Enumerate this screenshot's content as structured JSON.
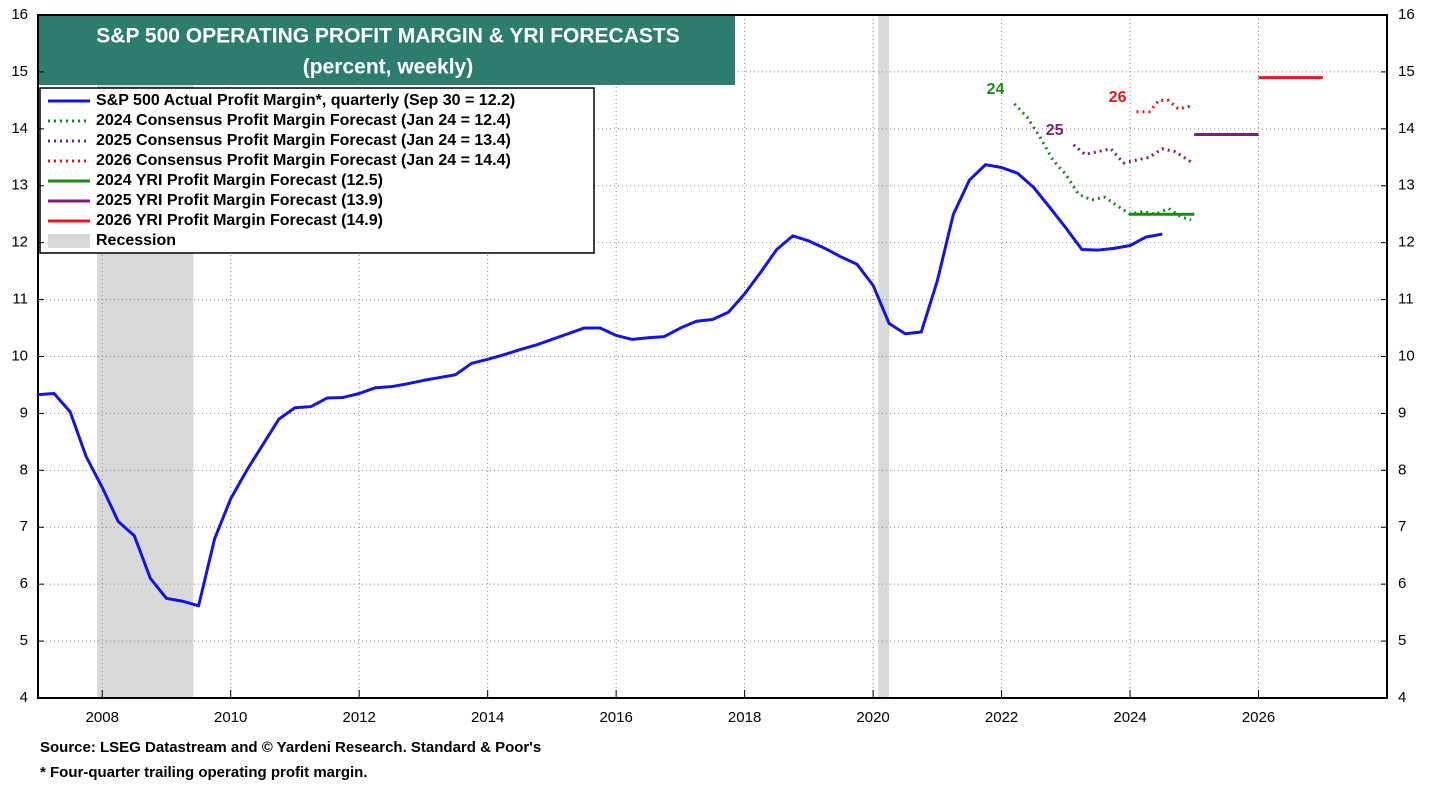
{
  "chart_data": {
    "type": "line",
    "title": "S&P 500 OPERATING PROFIT MARGIN & YRI FORECASTS",
    "subtitle": "(percent, weekly)",
    "xlim": [
      2007,
      2028
    ],
    "xticks": [
      2008,
      2010,
      2012,
      2014,
      2016,
      2018,
      2020,
      2022,
      2024,
      2026
    ],
    "ylim": [
      4,
      16
    ],
    "yticks": [
      4,
      5,
      6,
      7,
      8,
      9,
      10,
      11,
      12,
      13,
      14,
      15,
      16
    ],
    "y2lim": [
      4,
      16
    ],
    "y2ticks": [
      4,
      5,
      6,
      7,
      8,
      9,
      10,
      11,
      12,
      13,
      14,
      15,
      16
    ],
    "grid": true,
    "legend": "upper left",
    "series": [
      {
        "name": "S&P 500 Actual Profit Margin*, quarterly (Sep 30 = 12.2)",
        "color": "#1414e6",
        "style": "solid",
        "x": [
          2007,
          2007.25,
          2007.5,
          2007.75,
          2008,
          2008.25,
          2008.5,
          2008.75,
          2009,
          2009.25,
          2009.5,
          2009.75,
          2010,
          2010.25,
          2010.5,
          2010.75,
          2011,
          2011.25,
          2011.5,
          2011.75,
          2012,
          2012.25,
          2012.5,
          2012.75,
          2013,
          2013.25,
          2013.5,
          2013.75,
          2014,
          2014.25,
          2014.5,
          2014.75,
          2015,
          2015.25,
          2015.5,
          2015.75,
          2016,
          2016.25,
          2016.5,
          2016.75,
          2017,
          2017.25,
          2017.5,
          2017.75,
          2018,
          2018.25,
          2018.5,
          2018.75,
          2019,
          2019.25,
          2019.5,
          2019.75,
          2020,
          2020.25,
          2020.5,
          2020.75,
          2021,
          2021.25,
          2021.5,
          2021.75,
          2022,
          2022.25,
          2022.5,
          2022.75,
          2023,
          2023.25,
          2023.5,
          2023.75,
          2024,
          2024.25,
          2024.5
        ],
        "values": [
          9.33,
          9.35,
          9.03,
          8.24,
          7.7,
          7.1,
          6.85,
          6.1,
          5.75,
          5.7,
          5.62,
          6.8,
          7.5,
          8.0,
          8.45,
          8.9,
          9.1,
          9.12,
          9.27,
          9.28,
          9.35,
          9.45,
          9.47,
          9.52,
          9.58,
          9.63,
          9.68,
          9.88,
          9.95,
          10.03,
          10.12,
          10.2,
          10.3,
          10.4,
          10.5,
          10.5,
          10.37,
          10.3,
          10.33,
          10.35,
          10.5,
          10.62,
          10.65,
          10.78,
          11.1,
          11.48,
          11.88,
          12.12,
          12.03,
          11.9,
          11.75,
          11.62,
          11.25,
          10.58,
          10.4,
          10.43,
          11.33,
          12.5,
          13.1,
          13.37,
          13.32,
          13.22,
          12.97,
          12.62,
          12.26,
          11.88,
          11.87,
          11.9,
          11.95,
          12.1,
          12.15
        ]
      },
      {
        "name": "2024 Consensus Profit Margin Forecast (Jan 24 = 12.4)",
        "color": "#1a8a1a",
        "style": "dotted",
        "x": [
          2022.2,
          2022.4,
          2022.6,
          2022.8,
          2023.0,
          2023.2,
          2023.4,
          2023.6,
          2023.8,
          2024.0,
          2024.2,
          2024.4,
          2024.6,
          2024.8,
          2024.95
        ],
        "values": [
          14.44,
          14.2,
          13.85,
          13.45,
          13.2,
          12.85,
          12.75,
          12.8,
          12.65,
          12.5,
          12.55,
          12.5,
          12.6,
          12.45,
          12.4
        ]
      },
      {
        "name": "2025 Consensus Profit Margin Forecast (Jan 24 = 13.4)",
        "color": "#7b1f7b",
        "style": "dotted",
        "x": [
          2023.12,
          2023.3,
          2023.5,
          2023.7,
          2023.9,
          2024.1,
          2024.3,
          2024.5,
          2024.7,
          2024.95
        ],
        "values": [
          13.72,
          13.55,
          13.6,
          13.65,
          13.4,
          13.45,
          13.5,
          13.65,
          13.6,
          13.42
        ]
      },
      {
        "name": "2026 Consensus Profit Margin Forecast (Jan 24 = 14.4)",
        "color": "#e8141b",
        "style": "dotted",
        "x": [
          2024.1,
          2024.3,
          2024.45,
          2024.6,
          2024.75,
          2024.95
        ],
        "values": [
          14.3,
          14.3,
          14.5,
          14.5,
          14.35,
          14.4
        ]
      },
      {
        "name": "2024 YRI Profit Margin Forecast (12.5)",
        "color": "#1a8a1a",
        "style": "solid",
        "x": [
          2024,
          2025
        ],
        "values": [
          12.5,
          12.5
        ]
      },
      {
        "name": "2025 YRI Profit Margin Forecast (13.9)",
        "color": "#7b1f7b",
        "style": "solid",
        "x": [
          2025,
          2026
        ],
        "values": [
          13.9,
          13.9
        ]
      },
      {
        "name": "2026 YRI Profit Margin Forecast (14.9)",
        "color": "#e8141b",
        "style": "solid",
        "x": [
          2026,
          2027
        ],
        "values": [
          14.9,
          14.9
        ]
      }
    ],
    "recession": {
      "name": "Recession",
      "color": "#d9d9d9",
      "spans": [
        [
          2007.92,
          2009.42
        ],
        [
          2020.08,
          2020.25
        ]
      ]
    },
    "annotations": [
      "24",
      "25",
      "26"
    ],
    "notes": [
      "Source: LSEG Datastream and © Yardeni Research. Standard & Poor's",
      "* Four-quarter trailing operating profit margin."
    ]
  }
}
